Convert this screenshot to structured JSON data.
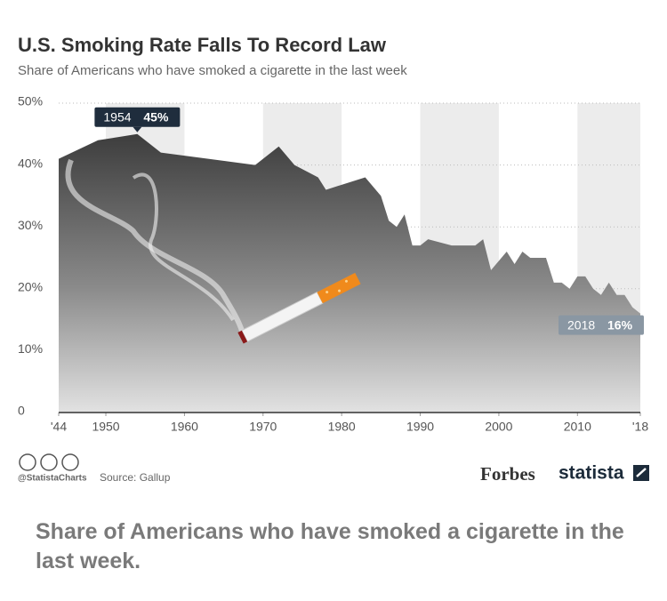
{
  "chart_data": {
    "type": "area",
    "title": "U.S. Smoking Rate Falls To Record Law",
    "subtitle": "Share of Americans who have smoked a cigarette in the last week",
    "x": [
      1944,
      1949,
      1954,
      1957,
      1969,
      1972,
      1974,
      1977,
      1978,
      1983,
      1985,
      1986,
      1987,
      1988,
      1989,
      1990,
      1991,
      1994,
      1997,
      1998,
      1999,
      2001,
      2002,
      2003,
      2004,
      2006,
      2007,
      2008,
      2009,
      2010,
      2011,
      2012,
      2013,
      2014,
      2015,
      2016,
      2017,
      2018
    ],
    "values": [
      41,
      44,
      45,
      42,
      40,
      43,
      40,
      38,
      36,
      38,
      35,
      31,
      30,
      32,
      27,
      27,
      28,
      27,
      27,
      28,
      23,
      26,
      24,
      26,
      25,
      25,
      21,
      21,
      20,
      22,
      22,
      20,
      19,
      21,
      19,
      19,
      17,
      16
    ],
    "xlim": [
      1944,
      2018
    ],
    "xticks": [
      {
        "value": 1944,
        "label": "'44"
      },
      1950,
      1960,
      1970,
      1980,
      1990,
      2000,
      2010,
      {
        "value": 2018,
        "label": "'18"
      }
    ],
    "ylim": [
      0,
      50
    ],
    "yticks": [
      0,
      {
        "value": 10,
        "label": "10%"
      },
      {
        "value": 20,
        "label": "20%"
      },
      {
        "value": 30,
        "label": "30%"
      },
      {
        "value": 40,
        "label": "40%"
      },
      {
        "value": 50,
        "label": "50%"
      }
    ],
    "grid": true,
    "annotations": [
      {
        "x": 1954,
        "value": 45,
        "label": "45%",
        "color": "#1f2d3d"
      },
      {
        "x": 2018,
        "value": 16,
        "label": "16%",
        "color": "#8a97a3"
      }
    ],
    "handle": "@StatistaCharts",
    "source": "Source: Gallup",
    "brands": [
      "Forbes",
      "statista"
    ]
  },
  "caption": "Share of Americans who have smoked a cigarette in the last week."
}
